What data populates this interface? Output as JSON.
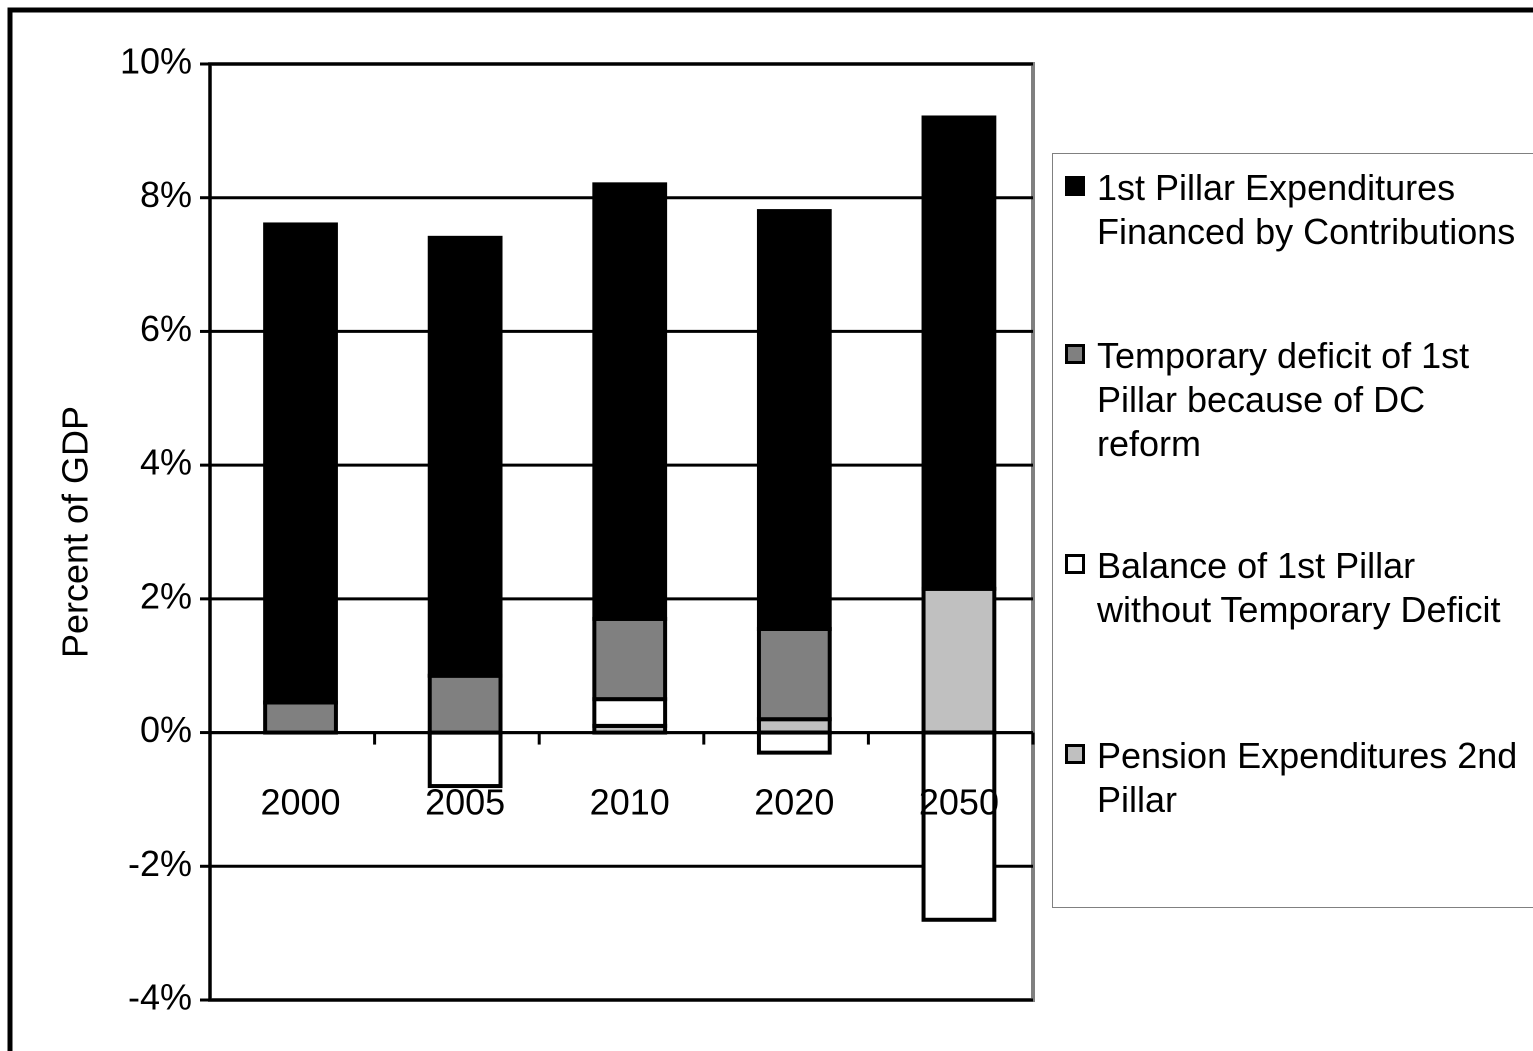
{
  "chart_data": {
    "type": "stacked-bar",
    "y_label": "Percent of GDP",
    "categories": [
      "2000",
      "2005",
      "2010",
      "2020",
      "2050"
    ],
    "series": [
      {
        "name": "1st Pillar Expenditures Financed by Contributions",
        "color": "#000000",
        "values": [
          7.15,
          6.55,
          6.5,
          6.25,
          7.05
        ]
      },
      {
        "name": "Temporary deficit of 1st Pillar because of DC reform",
        "color": "#808080",
        "values": [
          0.45,
          0.85,
          1.2,
          1.35,
          0
        ]
      },
      {
        "name": "Balance of 1st Pillar without Temporary Deficit",
        "color": "#ffffff",
        "values": [
          0,
          -0.8,
          0.4,
          -0.3,
          -2.8
        ]
      },
      {
        "name": "Pension Expenditures 2nd Pillar",
        "color": "#c0c0c0",
        "values": [
          0,
          0,
          0.1,
          0.2,
          2.15
        ]
      }
    ],
    "ylim": [
      -4,
      10
    ],
    "yticks": [
      {
        "value": -4,
        "label": "-4%"
      },
      {
        "value": -2,
        "label": "-2%"
      },
      {
        "value": 0,
        "label": "0%"
      },
      {
        "value": 2,
        "label": "2%"
      },
      {
        "value": 4,
        "label": "4%"
      },
      {
        "value": 6,
        "label": "6%"
      },
      {
        "value": 8,
        "label": "8%"
      },
      {
        "value": 10,
        "label": "10%"
      }
    ],
    "grid": true,
    "legend": "right"
  }
}
